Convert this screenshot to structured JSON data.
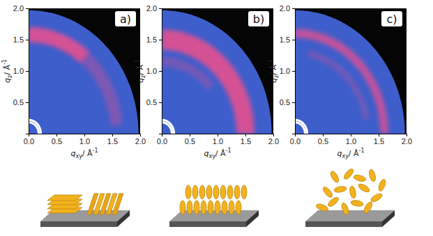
{
  "chart_data": [
    {
      "type": "heatmap",
      "title": "a)",
      "xlabel": {
        "symbol": "q",
        "subscript": "xy",
        "unit": "/ Å",
        "superscript": "-1"
      },
      "ylabel": {
        "symbol": "q",
        "subscript": "z",
        "unit": "/ Å",
        "superscript": "-1"
      },
      "xlim": [
        0,
        2
      ],
      "ylim": [
        0,
        2
      ],
      "xticks": [
        {
          "value": 0,
          "label": "0.0"
        },
        {
          "value": 0.5,
          "label": "0.5"
        },
        {
          "value": 1,
          "label": "1.0"
        },
        {
          "value": 1.5,
          "label": "1.5"
        },
        {
          "value": 2,
          "label": "2.0"
        }
      ],
      "yticks": [
        {
          "value": 0.5,
          "label": "0.5"
        },
        {
          "value": 1,
          "label": "1.0"
        },
        {
          "value": 1.5,
          "label": "1.5"
        },
        {
          "value": 2,
          "label": "2.0"
        }
      ],
      "coverage_q": 1.97,
      "beamstop_q": 0.2,
      "rings": [
        {
          "q": 1.58,
          "width": 0.24,
          "chi": [
            50,
            90
          ],
          "intensity": 0.85
        },
        {
          "q": 1.58,
          "width": 0.22,
          "chi": [
            5,
            50
          ],
          "intensity": 0.35
        }
      ]
    },
    {
      "type": "heatmap",
      "title": "b)",
      "xlabel": {
        "symbol": "q",
        "subscript": "xy",
        "unit": "/ Å",
        "superscript": "-1"
      },
      "ylabel": {
        "symbol": "q",
        "subscript": "z",
        "unit": "/ Å",
        "superscript": "-1"
      },
      "xlim": [
        0,
        2
      ],
      "ylim": [
        0,
        2
      ],
      "xticks": [
        {
          "value": 0,
          "label": "0.0"
        },
        {
          "value": 0.5,
          "label": "0.5"
        },
        {
          "value": 1,
          "label": "1.0"
        },
        {
          "value": 1.5,
          "label": "1.5"
        },
        {
          "value": 2,
          "label": "2.0"
        }
      ],
      "yticks": [
        {
          "value": 0.5,
          "label": "0.5"
        },
        {
          "value": 1,
          "label": "1.0"
        },
        {
          "value": 1.5,
          "label": "1.5"
        },
        {
          "value": 2,
          "label": "2.0"
        }
      ],
      "coverage_q": 1.97,
      "beamstop_q": 0.2,
      "rings": [
        {
          "q": 1.5,
          "width": 0.32,
          "chi": [
            0,
            90
          ],
          "intensity": 0.85
        },
        {
          "q": 1.15,
          "width": 0.15,
          "chi": [
            40,
            90
          ],
          "intensity": 0.3
        }
      ]
    },
    {
      "type": "heatmap",
      "title": "c)",
      "xlabel": {
        "symbol": "q",
        "subscript": "xy",
        "unit": "/ Å",
        "superscript": "-1"
      },
      "ylabel": {
        "symbol": "q",
        "subscript": "z",
        "unit": "/ Å",
        "superscript": "-1"
      },
      "xlim": [
        0,
        2
      ],
      "ylim": [
        0,
        2
      ],
      "xticks": [
        {
          "value": 0,
          "label": "0.0"
        },
        {
          "value": 0.5,
          "label": "0.5"
        },
        {
          "value": 1,
          "label": "1.0"
        },
        {
          "value": 1.5,
          "label": "1.5"
        },
        {
          "value": 2,
          "label": "2.0"
        }
      ],
      "yticks": [
        {
          "value": 0.5,
          "label": "0.5"
        },
        {
          "value": 1,
          "label": "1.0"
        },
        {
          "value": 1.5,
          "label": "1.5"
        },
        {
          "value": 2,
          "label": "2.0"
        }
      ],
      "coverage_q": 1.97,
      "beamstop_q": 0.2,
      "rings": [
        {
          "q": 1.6,
          "width": 0.14,
          "chi": [
            0,
            90
          ],
          "intensity": 0.75
        },
        {
          "q": 1.3,
          "width": 0.1,
          "chi": [
            10,
            80
          ],
          "intensity": 0.3
        }
      ]
    }
  ]
}
